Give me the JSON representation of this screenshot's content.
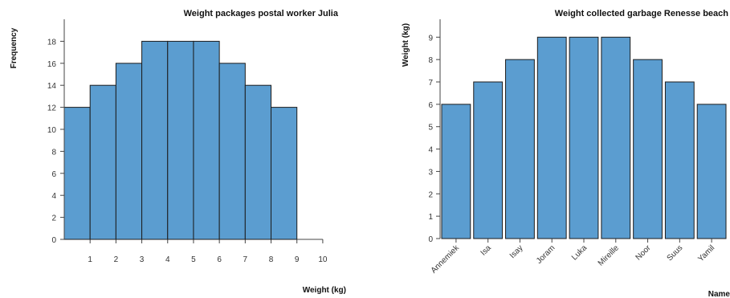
{
  "chart_data": [
    {
      "type": "bar",
      "title": "Weight packages postal worker Julia",
      "xlabel": "Weight (kg)",
      "ylabel": "Frequency",
      "bin_edges": [
        0,
        1,
        2,
        3,
        4,
        5,
        6,
        7,
        8,
        9,
        10
      ],
      "x_ticks": [
        1,
        2,
        3,
        4,
        5,
        6,
        7,
        8,
        9,
        10
      ],
      "values": [
        12,
        14,
        16,
        18,
        18,
        18,
        16,
        14,
        12,
        0
      ],
      "y_ticks": [
        0,
        2,
        4,
        6,
        8,
        10,
        12,
        14,
        16,
        18
      ],
      "xlim": [
        0,
        10.5
      ],
      "ylim": [
        0,
        20
      ],
      "grid": false,
      "colors": {
        "bar": "#5b9dd0",
        "edge": "#1c1c1c"
      }
    },
    {
      "type": "bar",
      "title": "Weight collected garbage Renesse beach",
      "xlabel": "Name",
      "ylabel": "Weight (kg)",
      "categories": [
        "Annemiek",
        "Isa",
        "Isay",
        "Joram",
        "Luka",
        "Mireille",
        "Noor",
        "Suus",
        "Yamil"
      ],
      "values": [
        6,
        7,
        8,
        9,
        9,
        9,
        8,
        7,
        6
      ],
      "y_ticks": [
        0,
        1,
        2,
        3,
        4,
        5,
        6,
        7,
        8,
        9
      ],
      "ylim": [
        0,
        9.8
      ],
      "grid": false,
      "colors": {
        "bar": "#5b9dd0",
        "edge": "#1c1c1c"
      }
    }
  ]
}
